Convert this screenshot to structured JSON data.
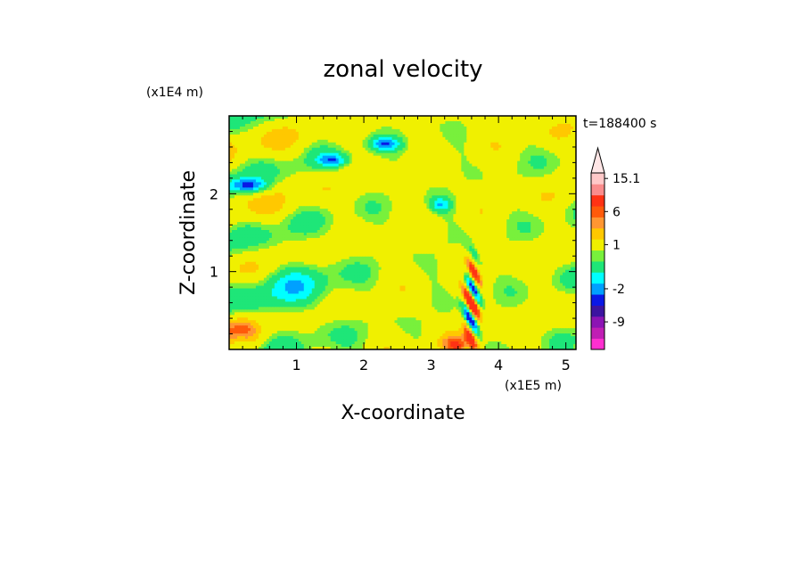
{
  "chart_data": {
    "type": "heatmap",
    "title": "zonal velocity",
    "xlabel": "X-coordinate",
    "ylabel": "Z-coordinate",
    "x_unit": "(x1E5 m)",
    "y_unit": "(x1E4 m)",
    "time_label": "t=188400 s",
    "xlim": [
      0,
      5.15
    ],
    "ylim": [
      0,
      3.0
    ],
    "x_ticks": [
      1,
      2,
      3,
      4,
      5
    ],
    "y_ticks": [
      1,
      2
    ],
    "colorbar": {
      "levels": [
        -15,
        -12,
        -9,
        -6,
        -4,
        -2,
        -1,
        0,
        0.5,
        1,
        2,
        4,
        6,
        8,
        11,
        15.1
      ],
      "colors": [
        "#ff2fd0",
        "#c01eb4",
        "#8c14b4",
        "#3c14a0",
        "#0a18e6",
        "#00a0ff",
        "#00ffff",
        "#1ee678",
        "#78f03c",
        "#f0f000",
        "#ffc800",
        "#ff9632",
        "#ff5a0a",
        "#ff3214",
        "#fa8c8c",
        "#ffc8c8"
      ],
      "labels": [
        {
          "value": -9,
          "text": "-9"
        },
        {
          "value": -2,
          "text": "-2"
        },
        {
          "value": 1,
          "text": "1"
        },
        {
          "value": 6,
          "text": "6"
        },
        {
          "value": 15.1,
          "text": "15.1"
        }
      ]
    },
    "grid": false,
    "legend": "right"
  }
}
